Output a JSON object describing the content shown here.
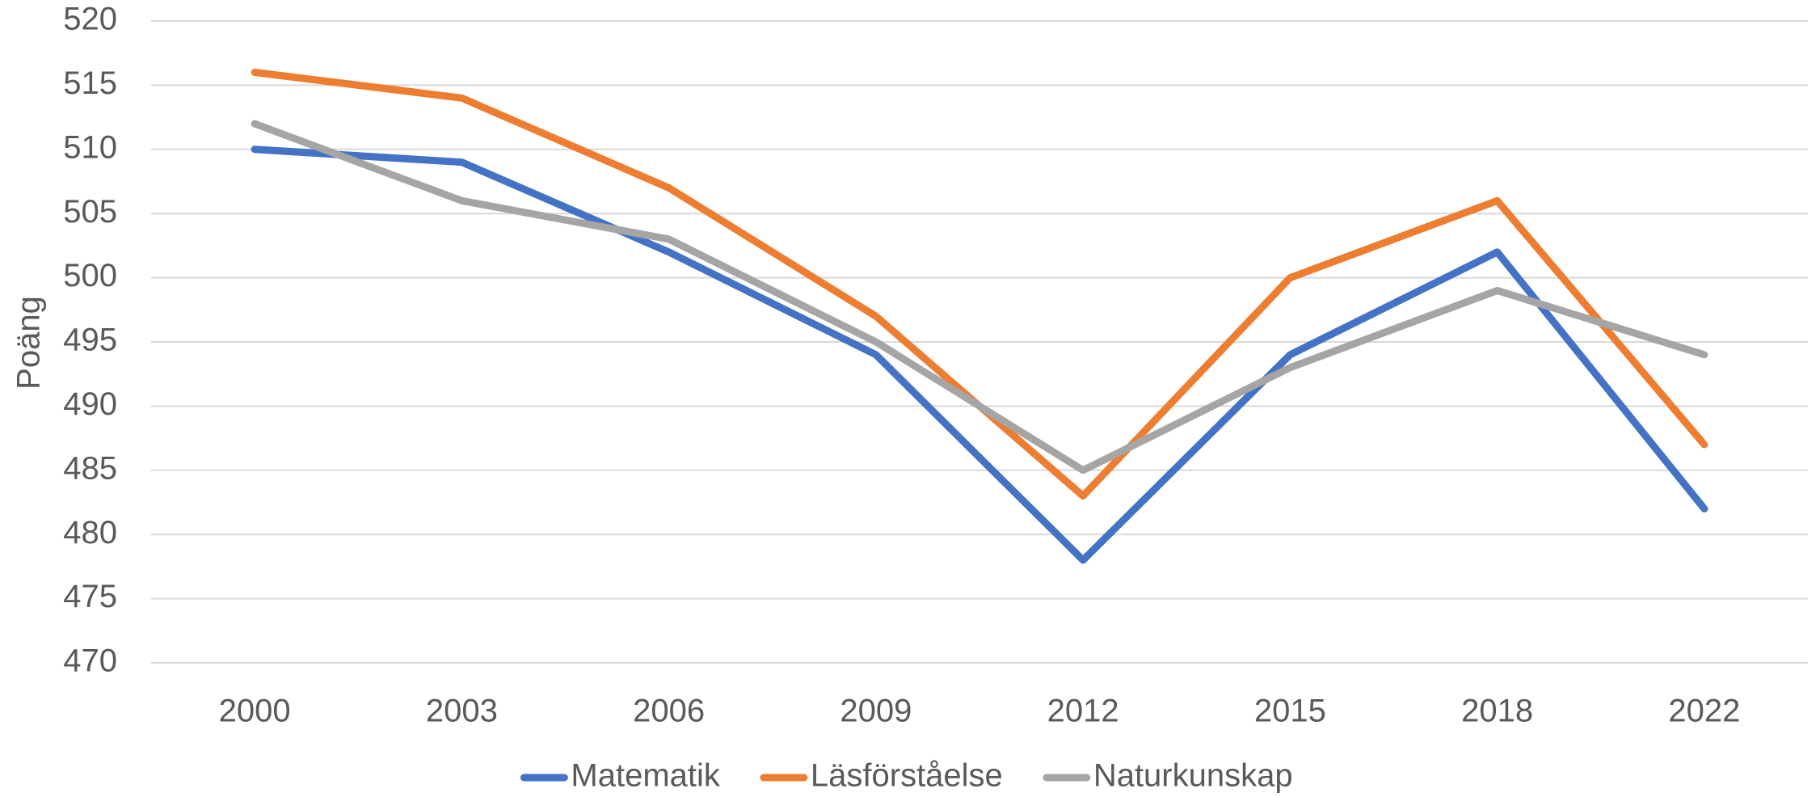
{
  "chart_data": {
    "type": "line",
    "y_label": "Poäng",
    "categories": [
      "2000",
      "2003",
      "2006",
      "2009",
      "2012",
      "2015",
      "2018",
      "2022"
    ],
    "series": [
      {
        "name": "Matematik",
        "color": "#4472c4",
        "values": [
          510,
          509,
          502,
          494,
          478,
          494,
          502,
          482
        ]
      },
      {
        "name": "Läsförståelse",
        "color": "#ed7d31",
        "values": [
          516,
          514,
          507,
          497,
          483,
          500,
          506,
          487
        ]
      },
      {
        "name": "Naturkunskap",
        "color": "#a5a5a5",
        "values": [
          512,
          506,
          503,
          495,
          485,
          493,
          499,
          494
        ]
      }
    ],
    "ylim": [
      470,
      520
    ],
    "yticks": [
      470,
      475,
      480,
      485,
      490,
      495,
      500,
      505,
      510,
      515,
      520
    ],
    "grid": true,
    "legend": "bottom"
  }
}
